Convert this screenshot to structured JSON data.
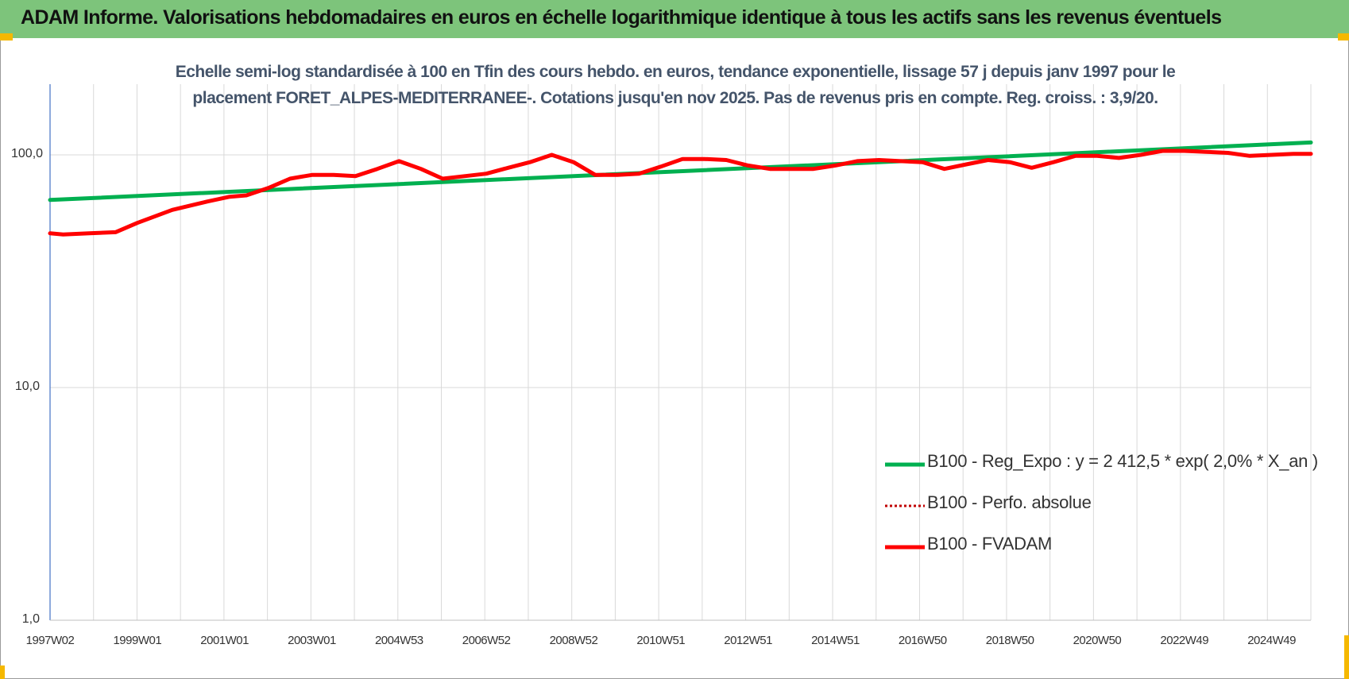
{
  "header": {
    "title": "ADAM Informe. Valorisations hebdomadaires en euros en échelle logarithmique identique à tous les actifs sans les revenus éventuels"
  },
  "colors": {
    "banner": "#7dc47b",
    "corner": "#f5b800",
    "regression": "#00b050",
    "perfo": "#c00000",
    "fvadam": "#ff0000"
  },
  "chart_data": {
    "type": "line",
    "scale": "log",
    "subtitle_lines": [
      "Echelle semi-log standardisée à 100 en Tfin des cours hebdo. en euros, tendance exponentielle, lissage 57 j depuis janv 1997 pour le",
      "placement FORET_ALPES-MEDITERRANEE-. Cotations jusqu'en nov 2025. Pas de revenus pris en compte. Reg. croiss. : 3,9/20."
    ],
    "ylim": [
      1,
      200
    ],
    "y_tick_labels": [
      "100,0",
      "10,0",
      "1,0"
    ],
    "y_tick_values": [
      100,
      10,
      1
    ],
    "xlim": [
      1997.0,
      2025.9
    ],
    "x_tick_labels": [
      "1997W02",
      "1999W01",
      "2001W01",
      "2003W01",
      "2004W53",
      "2006W52",
      "2008W52",
      "2010W51",
      "2012W51",
      "2014W51",
      "2016W50",
      "2018W50",
      "2020W50",
      "2022W49",
      "2024W49"
    ],
    "x_tick_values": [
      1997.0,
      1999.0,
      2001.0,
      2003.0,
      2005.0,
      2007.0,
      2009.0,
      2011.0,
      2013.0,
      2015.0,
      2017.0,
      2019.0,
      2021.0,
      2023.0,
      2025.0
    ],
    "series": [
      {
        "name": "B100 - Reg_Expo : y = 2 412,5 * exp( 2,0% *  X_an )",
        "style": "solid-green",
        "x": [
          1997.0,
          2025.9
        ],
        "y": [
          64,
          113
        ]
      },
      {
        "name": "B100 - Perfo. absolue",
        "style": "dotted-darkred",
        "x": [],
        "y": []
      },
      {
        "name": "B100 - FVADAM",
        "style": "solid-red",
        "x": [
          1997.0,
          1997.3,
          1997.9,
          1998.5,
          1999.0,
          1999.8,
          2000.6,
          2001.1,
          2001.5,
          2002.0,
          2002.5,
          2003.0,
          2003.5,
          2004.0,
          2004.5,
          2005.0,
          2005.5,
          2006.0,
          2006.5,
          2007.0,
          2007.5,
          2008.0,
          2008.5,
          2009.0,
          2009.5,
          2010.0,
          2010.5,
          2011.0,
          2011.5,
          2012.0,
          2012.5,
          2013.0,
          2013.5,
          2014.0,
          2014.5,
          2015.0,
          2015.5,
          2016.0,
          2016.5,
          2017.0,
          2017.5,
          2018.0,
          2018.5,
          2019.0,
          2019.5,
          2020.0,
          2020.5,
          2021.0,
          2021.5,
          2022.0,
          2022.5,
          2023.0,
          2023.5,
          2024.0,
          2024.5,
          2025.0,
          2025.5,
          2025.9
        ],
        "y": [
          46,
          45.5,
          46,
          46.5,
          51,
          58,
          63,
          66,
          67,
          72,
          79,
          82,
          82,
          81,
          87,
          94,
          87,
          79,
          81,
          83,
          88,
          93,
          100,
          93,
          82,
          82,
          83,
          89,
          96,
          96,
          95,
          90,
          87,
          87,
          87,
          90,
          94,
          95,
          94,
          93,
          87,
          91,
          95,
          93,
          88,
          93,
          99,
          99,
          97,
          100,
          104,
          104,
          103,
          102,
          99,
          100,
          101,
          101
        ]
      }
    ]
  }
}
